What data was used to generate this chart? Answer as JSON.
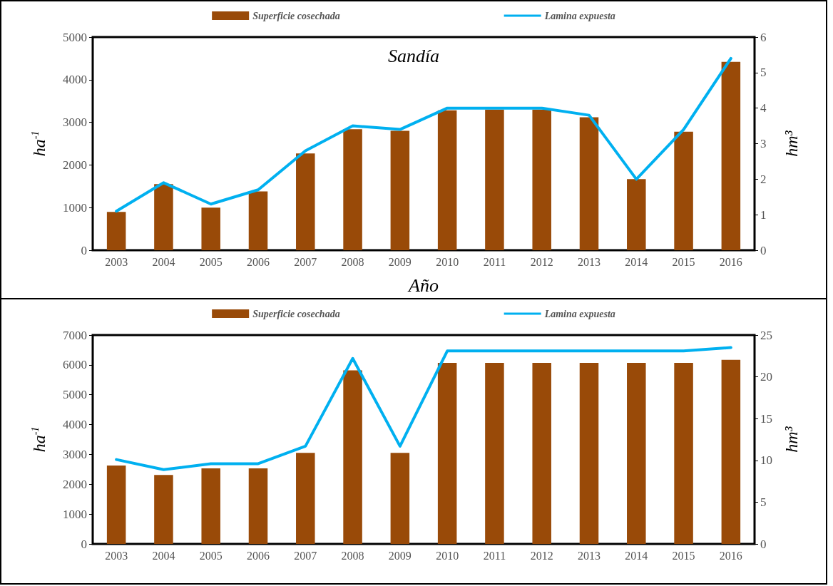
{
  "chart_data": [
    {
      "type": "bar",
      "title": "Sandía",
      "xlabel": "Año",
      "ylabel": "ha$^{-1}$",
      "y2label": "hm³",
      "categories": [
        "2003",
        "2004",
        "2005",
        "2006",
        "2007",
        "2008",
        "2009",
        "2010",
        "2011",
        "2012",
        "2013",
        "2014",
        "2015",
        "2016"
      ],
      "series": [
        {
          "name": "Superficie cosechada",
          "color": "#994a08",
          "values": [
            900,
            1550,
            1000,
            1380,
            2270,
            2840,
            2800,
            3280,
            3300,
            3300,
            3120,
            1670,
            2780,
            4420
          ]
        },
        {
          "name": "Lamina expuesta",
          "type": "line",
          "axis": "y2",
          "color": "#00b0f0",
          "values": [
            1.1,
            1.9,
            1.3,
            1.7,
            2.8,
            3.5,
            3.4,
            4.0,
            4.0,
            4.0,
            3.8,
            2.0,
            3.4,
            5.4
          ]
        }
      ],
      "ylim": [
        0,
        5000
      ],
      "yticks": [
        0,
        1000,
        2000,
        3000,
        4000,
        5000
      ],
      "y2lim": [
        0,
        6
      ],
      "y2ticks": [
        0,
        1,
        2,
        3,
        4,
        5,
        6
      ],
      "grid": false,
      "legend": "top",
      "marker": "none",
      "line_style": "solid"
    },
    {
      "type": "bar",
      "ylabel": "ha$^{-1}$",
      "y2label": "hm³",
      "categories": [
        "2003",
        "2004",
        "2005",
        "2006",
        "2007",
        "2008",
        "2009",
        "2010",
        "2011",
        "2012",
        "2013",
        "2014",
        "2015",
        "2016"
      ],
      "series": [
        {
          "name": "Superficie cosechada",
          "color": "#994a08",
          "values": [
            2630,
            2310,
            2530,
            2530,
            3050,
            5820,
            3050,
            6070,
            6070,
            6070,
            6070,
            6070,
            6070,
            6170
          ]
        },
        {
          "name": "Lamina expuesta",
          "type": "line",
          "axis": "y2",
          "color": "#00b0f0",
          "values": [
            10.1,
            8.9,
            9.6,
            9.6,
            11.7,
            22.2,
            11.7,
            23.1,
            23.1,
            23.1,
            23.1,
            23.1,
            23.1,
            23.5
          ]
        }
      ],
      "ylim": [
        0,
        7000
      ],
      "yticks": [
        0,
        1000,
        2000,
        3000,
        4000,
        5000,
        6000,
        7000
      ],
      "y2lim": [
        0,
        25
      ],
      "y2ticks": [
        0,
        5,
        10,
        15,
        20,
        25
      ],
      "grid": false,
      "legend": "top",
      "marker": "none",
      "line_style": "solid"
    }
  ]
}
